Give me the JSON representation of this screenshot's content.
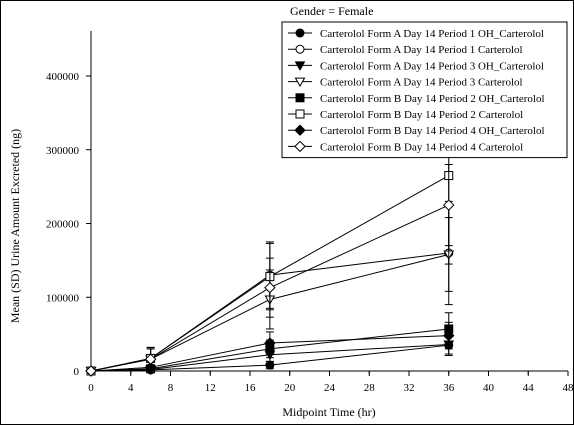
{
  "chart_data": {
    "type": "line",
    "title": "Gender = Female",
    "xlabel": "Midpoint Time (hr)",
    "ylabel": "Mean (SD) Urine Amount Excreted (ng)",
    "xlim": [
      0,
      48
    ],
    "ylim": [
      0,
      400000
    ],
    "xticks": [
      0,
      4,
      8,
      12,
      16,
      20,
      24,
      28,
      32,
      36,
      40,
      44,
      48
    ],
    "yticks": [
      0,
      100000,
      200000,
      300000,
      400000
    ],
    "grid": false,
    "legend_position": "top-right",
    "x": [
      0,
      6,
      18,
      36
    ],
    "series": [
      {
        "name": "Carterolol Form A  Day 14 Period 1 OH_Carterolol",
        "marker": "circle-filled",
        "values": [
          0,
          1500,
          8000,
          35000
        ],
        "sd": [
          0,
          1000,
          5000,
          12000
        ]
      },
      {
        "name": "Carterolol Form A  Day 14 Period 1 Carterolol",
        "marker": "circle-open",
        "values": [
          0,
          17000,
          130000,
          160000
        ],
        "sd": [
          0,
          15000,
          45000,
          70000
        ]
      },
      {
        "name": "Carterolol Form A  Day 14 Period 3 OH_Carterolol",
        "marker": "triangle-down-filled",
        "values": [
          0,
          2000,
          22000,
          36000
        ],
        "sd": [
          0,
          1500,
          9000,
          15000
        ]
      },
      {
        "name": "Carterolol Form A  Day 14 Period 3 Carterolol",
        "marker": "triangle-down-open",
        "values": [
          0,
          16000,
          97000,
          158000
        ],
        "sd": [
          0,
          14000,
          40000,
          50000
        ]
      },
      {
        "name": "Carterolol Form B  Day 14 Period 2 OH_Carterolol",
        "marker": "square-filled",
        "values": [
          0,
          3000,
          30000,
          57000
        ],
        "sd": [
          0,
          2000,
          12000,
          22000
        ]
      },
      {
        "name": "Carterolol Form B  Day 14 Period 2 Carterolol",
        "marker": "square-open",
        "values": [
          0,
          17000,
          128000,
          265000
        ],
        "sd": [
          0,
          15000,
          45000,
          120000
        ]
      },
      {
        "name": "Carterolol Form B  Day 14 Period 4 OH_Carterolol",
        "marker": "diamond-filled",
        "values": [
          0,
          5000,
          38000,
          48000
        ],
        "sd": [
          0,
          3000,
          15000,
          18000
        ]
      },
      {
        "name": "Carterolol Form B  Day 14 Period 4 Carterolol",
        "marker": "diamond-open",
        "values": [
          0,
          16000,
          113000,
          225000
        ],
        "sd": [
          0,
          14000,
          40000,
          55000
        ]
      }
    ]
  }
}
